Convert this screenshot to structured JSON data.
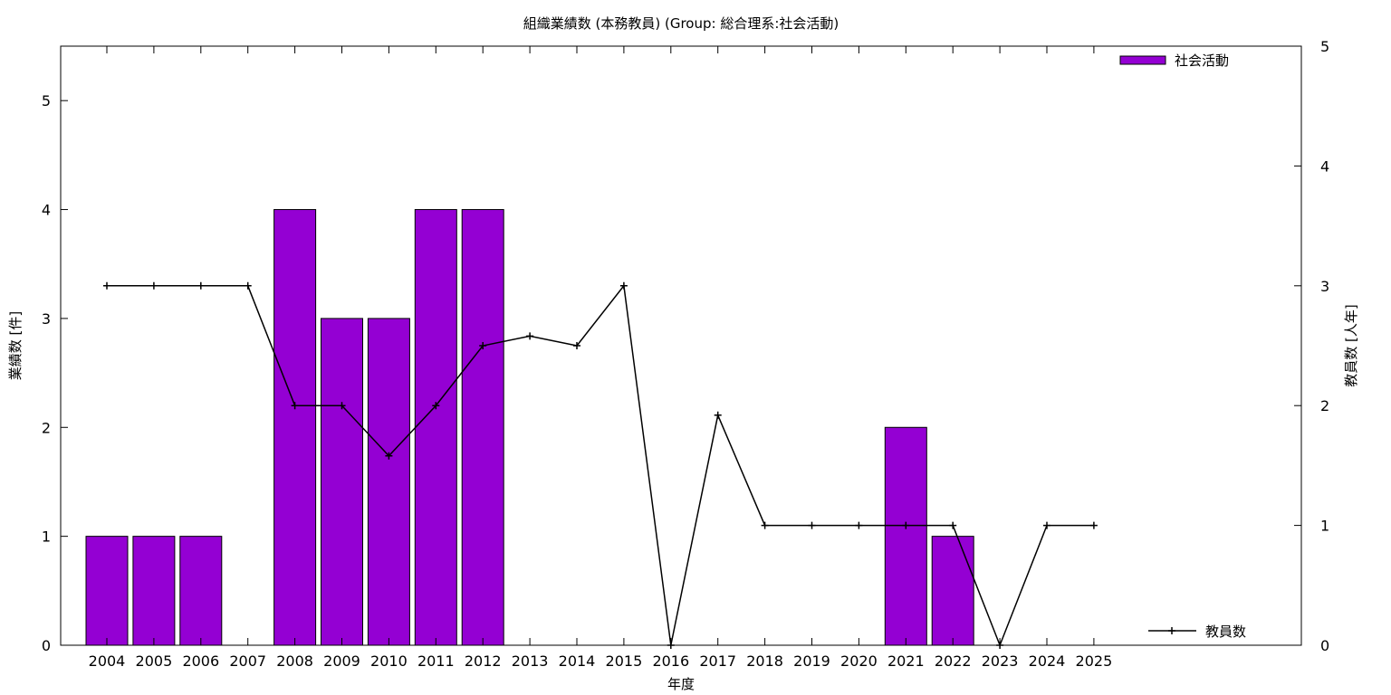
{
  "chart_data": {
    "type": "bar",
    "title": "組織業績数 (本務教員) (Group: 総合理系:社会活動)",
    "xlabel": "年度",
    "ylabel": "業績数 [件]",
    "y2label": "教員数 [人年]",
    "categories": [
      "2004",
      "2005",
      "2006",
      "2007",
      "2008",
      "2009",
      "2010",
      "2011",
      "2012",
      "2013",
      "2014",
      "2015",
      "2016",
      "2017",
      "2018",
      "2019",
      "2020",
      "2021",
      "2022",
      "2023",
      "2024",
      "2025"
    ],
    "ylim": [
      0,
      5.5
    ],
    "y2lim": [
      0,
      5
    ],
    "yticks": [
      0,
      1,
      2,
      3,
      4,
      5
    ],
    "y2ticks": [
      0,
      1,
      2,
      3,
      4,
      5
    ],
    "series": [
      {
        "name": "社会活動",
        "type": "bar",
        "axis": "left",
        "color": "#9400d3",
        "values": [
          1,
          1,
          1,
          0,
          4,
          3,
          3,
          4,
          4,
          0,
          0,
          0,
          0,
          0,
          0,
          0,
          0,
          2,
          1,
          0,
          0,
          0
        ]
      },
      {
        "name": "教員数",
        "type": "line",
        "axis": "right",
        "color": "#000000",
        "values": [
          3,
          3,
          3,
          3,
          2,
          2,
          1.58,
          2,
          2.5,
          2.58,
          2.5,
          3,
          0,
          1.92,
          1,
          1,
          1,
          1,
          1,
          0,
          1,
          1
        ]
      }
    ],
    "legend": [
      "top-right",
      "bottom-right"
    ],
    "grid": false
  }
}
